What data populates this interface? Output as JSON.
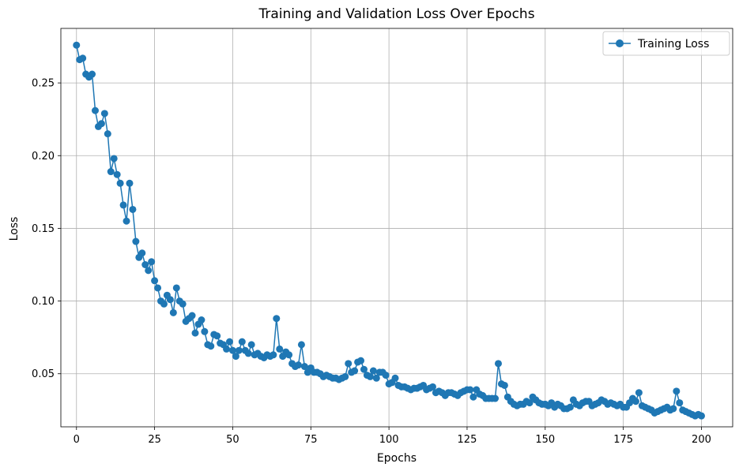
{
  "chart_data": {
    "type": "line",
    "title": "Training and Validation Loss Over Epochs",
    "xlabel": "Epochs",
    "ylabel": "Loss",
    "xlim": [
      -5,
      210
    ],
    "ylim": [
      0.0135,
      0.2875
    ],
    "xticks": [
      0,
      25,
      50,
      75,
      100,
      125,
      150,
      175,
      200
    ],
    "yticks": [
      0.05,
      0.1,
      0.15,
      0.2,
      0.25
    ],
    "ytick_labels": [
      "0.05",
      "0.10",
      "0.15",
      "0.20",
      "0.25"
    ],
    "grid": true,
    "legend_position": "top-right",
    "series": [
      {
        "name": "Training Loss",
        "color": "#1f77b4",
        "marker": "circle",
        "x_start": 0,
        "x_step": 1,
        "values": [
          0.276,
          0.266,
          0.267,
          0.256,
          0.254,
          0.256,
          0.231,
          0.22,
          0.222,
          0.229,
          0.215,
          0.189,
          0.198,
          0.187,
          0.181,
          0.166,
          0.155,
          0.181,
          0.163,
          0.141,
          0.13,
          0.133,
          0.125,
          0.121,
          0.127,
          0.114,
          0.109,
          0.1,
          0.098,
          0.104,
          0.101,
          0.092,
          0.109,
          0.1,
          0.098,
          0.086,
          0.088,
          0.09,
          0.078,
          0.084,
          0.087,
          0.079,
          0.07,
          0.069,
          0.077,
          0.076,
          0.071,
          0.07,
          0.067,
          0.072,
          0.066,
          0.062,
          0.066,
          0.072,
          0.066,
          0.064,
          0.07,
          0.063,
          0.064,
          0.062,
          0.061,
          0.063,
          0.062,
          0.063,
          0.088,
          0.067,
          0.062,
          0.065,
          0.063,
          0.057,
          0.055,
          0.056,
          0.07,
          0.055,
          0.051,
          0.054,
          0.051,
          0.051,
          0.05,
          0.048,
          0.049,
          0.048,
          0.047,
          0.047,
          0.046,
          0.047,
          0.048,
          0.057,
          0.051,
          0.052,
          0.058,
          0.059,
          0.053,
          0.049,
          0.048,
          0.052,
          0.047,
          0.051,
          0.051,
          0.049,
          0.043,
          0.044,
          0.047,
          0.042,
          0.041,
          0.041,
          0.04,
          0.039,
          0.04,
          0.04,
          0.041,
          0.042,
          0.039,
          0.04,
          0.041,
          0.037,
          0.038,
          0.037,
          0.035,
          0.037,
          0.037,
          0.036,
          0.035,
          0.037,
          0.038,
          0.039,
          0.039,
          0.034,
          0.039,
          0.036,
          0.035,
          0.033,
          0.033,
          0.033,
          0.033,
          0.057,
          0.043,
          0.042,
          0.034,
          0.031,
          0.029,
          0.028,
          0.029,
          0.029,
          0.031,
          0.03,
          0.034,
          0.032,
          0.03,
          0.029,
          0.029,
          0.028,
          0.03,
          0.027,
          0.029,
          0.028,
          0.026,
          0.026,
          0.027,
          0.032,
          0.029,
          0.028,
          0.03,
          0.031,
          0.031,
          0.028,
          0.029,
          0.03,
          0.032,
          0.031,
          0.029,
          0.03,
          0.029,
          0.028,
          0.029,
          0.027,
          0.027,
          0.03,
          0.033,
          0.031,
          0.037,
          0.028,
          0.027,
          0.026,
          0.025,
          0.023,
          0.024,
          0.025,
          0.026,
          0.027,
          0.025,
          0.026,
          0.038,
          0.03,
          0.025,
          0.024,
          0.023,
          0.022,
          0.021,
          0.022,
          0.021
        ]
      }
    ]
  }
}
